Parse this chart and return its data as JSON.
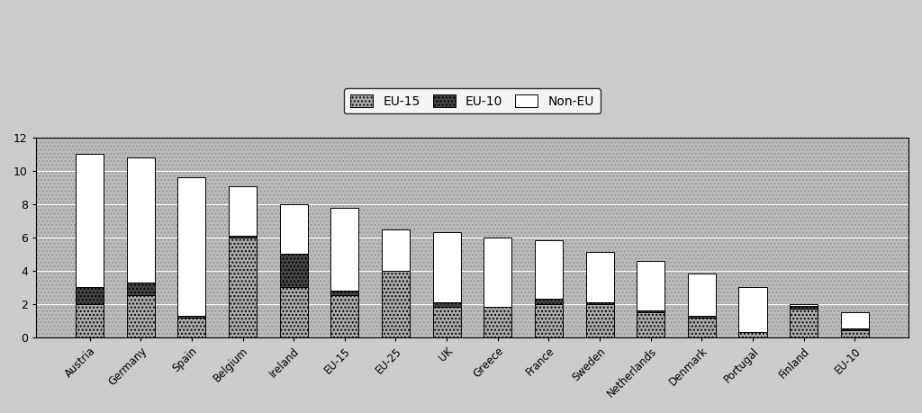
{
  "categories": [
    "Austria",
    "Germany",
    "Spain",
    "Belgium",
    "Ireland",
    "EU-15",
    "EU-25",
    "UK",
    "Greece",
    "France",
    "Sweden",
    "Netherlands",
    "Denmark",
    "Portugal",
    "Finland",
    "EU-10"
  ],
  "eu15": [
    2.0,
    2.5,
    1.2,
    6.0,
    3.0,
    2.5,
    4.0,
    1.8,
    1.8,
    2.0,
    2.0,
    1.5,
    1.2,
    0.3,
    1.7,
    0.4
  ],
  "eu10": [
    1.0,
    0.8,
    0.1,
    0.1,
    2.0,
    0.3,
    0.0,
    0.3,
    0.0,
    0.3,
    0.1,
    0.1,
    0.1,
    0.0,
    0.2,
    0.1
  ],
  "noneu": [
    8.0,
    7.5,
    8.3,
    3.0,
    3.0,
    5.0,
    2.5,
    4.2,
    4.2,
    3.5,
    3.0,
    3.0,
    2.5,
    2.7,
    0.1,
    1.0
  ],
  "eu15_color": "#aaaaaa",
  "eu10_color": "#444444",
  "noneu_color": "#ffffff",
  "bar_edge_color": "#000000",
  "background_color": "#cccccc",
  "plot_bg_color": "#bbbbbb",
  "ylim": [
    0,
    12
  ],
  "yticks": [
    0,
    2,
    4,
    6,
    8,
    10,
    12
  ],
  "bar_width": 0.55
}
